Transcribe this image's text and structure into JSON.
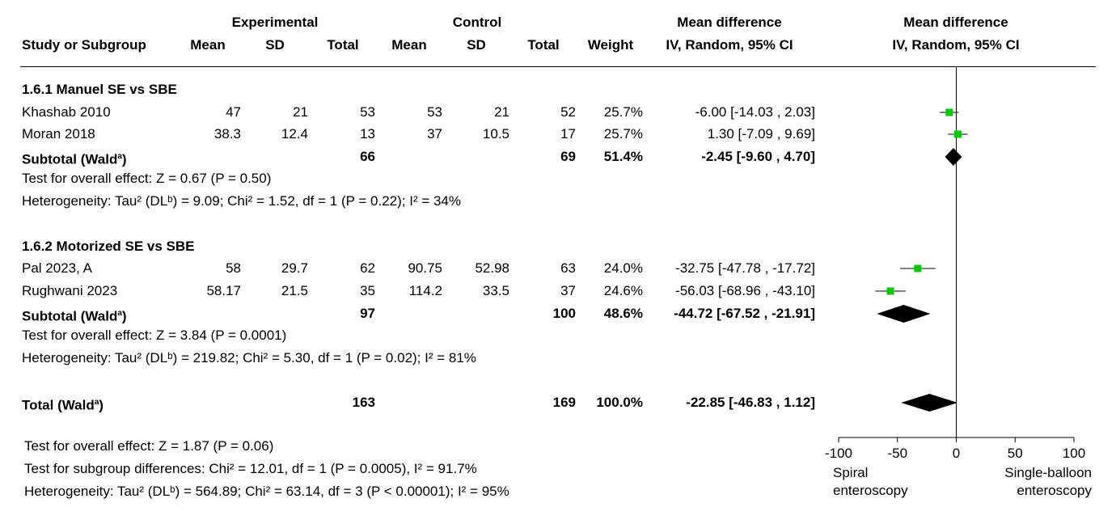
{
  "header": {
    "experimental": "Experimental",
    "control": "Control",
    "md_col": "Mean difference",
    "md_plot": "Mean difference",
    "study": "Study or Subgroup",
    "mean1": "Mean",
    "sd1": "SD",
    "total1": "Total",
    "mean2": "Mean",
    "sd2": "SD",
    "total2": "Total",
    "weight": "Weight",
    "ci_col": "IV, Random, 95% CI",
    "ci_plot": "IV, Random, 95% CI"
  },
  "groups": [
    {
      "title": "1.6.1 Manuel SE vs SBE",
      "studies": [
        {
          "name": "Khashab 2010",
          "m1": "47",
          "sd1": "21",
          "n1": "53",
          "m2": "53",
          "sd2": "21",
          "n2": "52",
          "weight": "25.7%",
          "ci": "-6.00 [-14.03 , 2.03]"
        },
        {
          "name": "Moran 2018",
          "m1": "38.3",
          "sd1": "12.4",
          "n1": "13",
          "m2": "37",
          "sd2": "10.5",
          "n2": "17",
          "weight": "25.7%",
          "ci": "1.30 [-7.09 , 9.69]"
        }
      ],
      "subtotal": {
        "label": "Subtotal (Wald",
        "sup": "a",
        "label_end": ")",
        "n1": "66",
        "n2": "69",
        "weight": "51.4%",
        "ci": "-2.45 [-9.60 , 4.70]"
      },
      "overall": "Test for overall effect: Z = 0.67 (P = 0.50)",
      "het": "Heterogeneity: Tau² (DLᵇ) = 9.09; Chi² = 1.52, df = 1 (P = 0.22); I² = 34%"
    },
    {
      "title": "1.6.2 Motorized SE vs SBE",
      "studies": [
        {
          "name": "Pal 2023, A",
          "m1": "58",
          "sd1": "29.7",
          "n1": "62",
          "m2": "90.75",
          "sd2": "52.98",
          "n2": "63",
          "weight": "24.0%",
          "ci": "-32.75 [-47.78 , -17.72]"
        },
        {
          "name": "Rughwani 2023",
          "m1": "58.17",
          "sd1": "21.5",
          "n1": "35",
          "m2": "114.2",
          "sd2": "33.5",
          "n2": "37",
          "weight": "24.6%",
          "ci": "-56.03 [-68.96 , -43.10]"
        }
      ],
      "subtotal": {
        "label": "Subtotal (Wald",
        "sup": "a",
        "label_end": ")",
        "n1": "97",
        "n2": "100",
        "weight": "48.6%",
        "ci": "-44.72 [-67.52 , -21.91]"
      },
      "overall": "Test for overall effect: Z = 3.84 (P = 0.0001)",
      "het": "Heterogeneity: Tau² (DLᵇ) = 219.82; Chi² = 5.30, df = 1 (P = 0.02); I² = 81%"
    }
  ],
  "total": {
    "label": "Total (Wald",
    "sup": "a",
    "label_end": ")",
    "n1": "163",
    "n2": "169",
    "weight": "100.0%",
    "ci": "-22.85 [-46.83 , 1.12]"
  },
  "footer": {
    "overall": "Test for overall effect: Z = 1.87 (P = 0.06)",
    "subgroup": "Test for subgroup differences: Chi² = 12.01, df = 1 (P = 0.0005), I² = 91.7%",
    "het": "Heterogeneity: Tau² (DLᵇ) = 564.89; Chi² = 63.14, df = 3 (P < 0.00001); I² = 95%"
  },
  "chart_data": {
    "type": "forest",
    "xlim": [
      -100,
      100
    ],
    "ticks": [
      -100,
      -50,
      0,
      50,
      100
    ],
    "left_label": [
      "Spiral",
      "enteroscopy"
    ],
    "right_label": [
      "Single-balloon",
      "enteroscopy"
    ],
    "square_color": "#00cc00",
    "studies": [
      {
        "name": "Khashab 2010",
        "est": -6.0,
        "lo": -14.03,
        "hi": 2.03
      },
      {
        "name": "Moran 2018",
        "est": 1.3,
        "lo": -7.09,
        "hi": 9.69
      },
      {
        "name": "Pal 2023, A",
        "est": -32.75,
        "lo": -47.78,
        "hi": -17.72
      },
      {
        "name": "Rughwani 2023",
        "est": -56.03,
        "lo": -68.96,
        "hi": -43.1
      }
    ],
    "diamonds": [
      {
        "name": "Subtotal 1.6.1",
        "est": -2.45,
        "lo": -9.6,
        "hi": 4.7
      },
      {
        "name": "Subtotal 1.6.2",
        "est": -44.72,
        "lo": -67.52,
        "hi": -21.91
      },
      {
        "name": "Total",
        "est": -22.85,
        "lo": -46.83,
        "hi": 1.12
      }
    ]
  }
}
